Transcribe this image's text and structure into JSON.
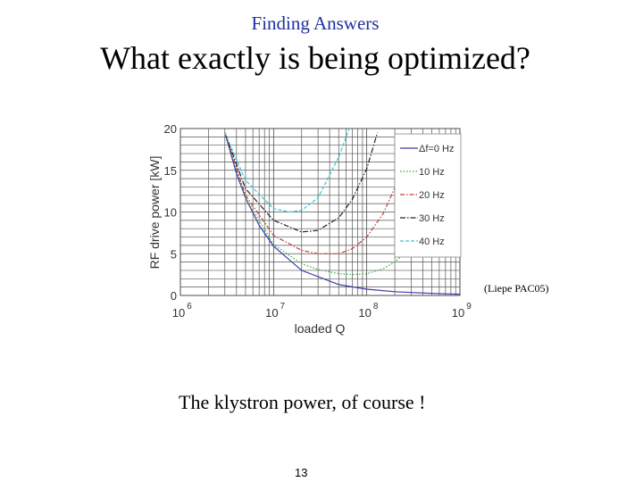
{
  "slide": {
    "topic": "Finding Answers",
    "title": "What exactly is being optimized?",
    "citation": "(Liepe PAC05)",
    "caption": "The klystron power, of course !",
    "page_number": "13"
  },
  "chart_data": {
    "type": "line",
    "xlabel": "loaded Q",
    "ylabel": "RF drive power [kW]",
    "x_scale": "log",
    "xlim": [
      1000000,
      1000000000
    ],
    "ylim": [
      0,
      20
    ],
    "x_ticks": [
      {
        "value": 1000000,
        "base": "10",
        "exp": "6"
      },
      {
        "value": 10000000,
        "base": "10",
        "exp": "7"
      },
      {
        "value": 100000000,
        "base": "10",
        "exp": "8"
      },
      {
        "value": 1000000000,
        "base": "10",
        "exp": "9"
      }
    ],
    "y_ticks": [
      0,
      5,
      10,
      15,
      20
    ],
    "grid": true,
    "legend_position": "top-right",
    "series": [
      {
        "name": "Δf=0 Hz",
        "color": "#3a3aa8",
        "dash": "",
        "x": [
          3000000,
          4000000,
          5000000,
          7000000,
          10000000,
          20000000,
          50000000,
          100000000,
          200000000,
          500000000,
          1000000000
        ],
        "y": [
          19.5,
          14.6,
          11.7,
          8.4,
          5.9,
          3.0,
          1.3,
          0.75,
          0.45,
          0.25,
          0.15
        ]
      },
      {
        "name": "10 Hz",
        "color": "#33aa33",
        "dash": "1.5,2",
        "x": [
          3000000,
          5000000,
          10000000,
          20000000,
          30000000,
          50000000,
          70000000,
          100000000,
          150000000,
          200000000,
          300000000
        ],
        "y": [
          19.5,
          11.7,
          6.1,
          3.8,
          3.1,
          2.6,
          2.5,
          2.6,
          3.2,
          4.0,
          5.7
        ]
      },
      {
        "name": "20 Hz",
        "color": "#c04040",
        "dash": "5,2,1.5,2",
        "x": [
          3000000,
          5000000,
          10000000,
          20000000,
          30000000,
          50000000,
          70000000,
          100000000,
          150000000,
          200000000
        ],
        "y": [
          19.5,
          12.0,
          7.2,
          5.4,
          5.0,
          5.0,
          5.6,
          7.0,
          9.8,
          12.9
        ]
      },
      {
        "name": "30 Hz",
        "color": "#222222",
        "dash": "6,2,1.5,2",
        "x": [
          3000000,
          5000000,
          10000000,
          20000000,
          30000000,
          50000000,
          70000000,
          100000000,
          130000000
        ],
        "y": [
          19.5,
          12.8,
          9.0,
          7.6,
          7.8,
          9.3,
          11.5,
          15.2,
          19.5
        ]
      },
      {
        "name": "40 Hz",
        "color": "#33c8d8",
        "dash": "4,2",
        "x": [
          3000000,
          5000000,
          10000000,
          15000000,
          20000000,
          30000000,
          50000000,
          70000000
        ],
        "y": [
          19.5,
          13.8,
          10.4,
          10.0,
          10.2,
          11.7,
          16.6,
          21.0
        ]
      }
    ]
  }
}
